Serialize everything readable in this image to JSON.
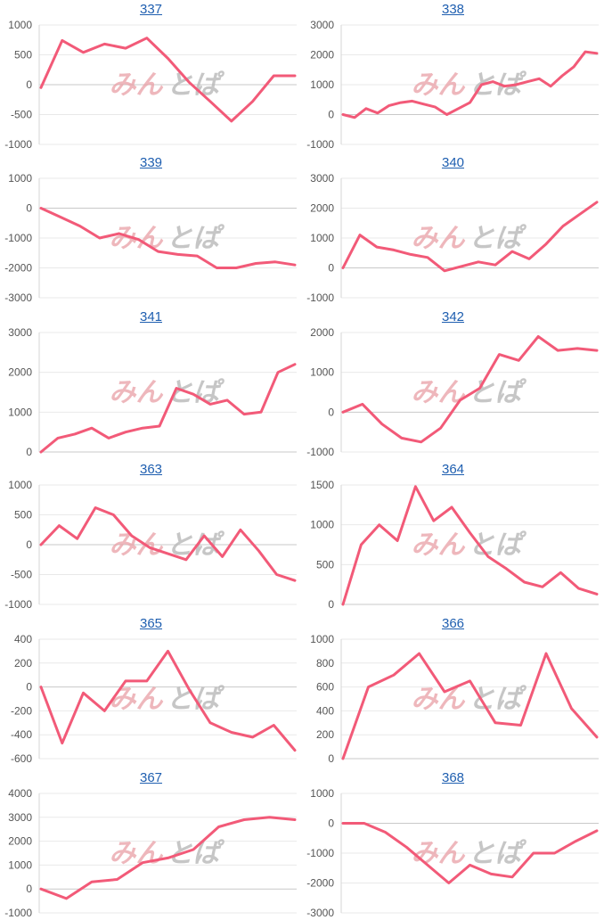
{
  "watermark": {
    "part1": "みん",
    "part2": "とぱ",
    "color1": "#e9a0a6",
    "color2": "#b9b9b9"
  },
  "colors": {
    "line": "#f25a78",
    "title": "#1f5fb0"
  },
  "chart_data": [
    {
      "type": "line",
      "title": "337",
      "ylim": [
        -1000,
        1000
      ],
      "yticks": [
        1000,
        500,
        0,
        -500,
        -1000
      ],
      "values": [
        -50,
        740,
        540,
        680,
        610,
        780,
        440,
        40,
        -280,
        -610,
        -280,
        150,
        150
      ]
    },
    {
      "type": "line",
      "title": "338",
      "ylim": [
        -1000,
        3000
      ],
      "yticks": [
        3000,
        2000,
        1000,
        0,
        -1000
      ],
      "values": [
        0,
        -100,
        200,
        50,
        300,
        400,
        450,
        350,
        250,
        0,
        200,
        400,
        1000,
        1100,
        950,
        1000,
        1100,
        1200,
        950,
        1300,
        1600,
        2100,
        2050
      ]
    },
    {
      "type": "line",
      "title": "339",
      "ylim": [
        -3000,
        1000
      ],
      "yticks": [
        1000,
        0,
        -1000,
        -2000,
        -3000
      ],
      "values": [
        0,
        -300,
        -600,
        -1000,
        -850,
        -1050,
        -1450,
        -1550,
        -1600,
        -2000,
        -2000,
        -1850,
        -1800,
        -1900
      ]
    },
    {
      "type": "line",
      "title": "340",
      "ylim": [
        -1000,
        3000
      ],
      "yticks": [
        3000,
        2000,
        1000,
        0,
        -1000
      ],
      "values": [
        0,
        1100,
        700,
        600,
        450,
        350,
        -100,
        50,
        200,
        100,
        550,
        300,
        800,
        1400,
        1800,
        2200
      ]
    },
    {
      "type": "line",
      "title": "341",
      "ylim": [
        0,
        3000
      ],
      "yticks": [
        3000,
        2000,
        1000,
        0
      ],
      "values": [
        0,
        350,
        450,
        600,
        350,
        500,
        600,
        650,
        1600,
        1450,
        1200,
        1300,
        950,
        1000,
        2000,
        2200
      ]
    },
    {
      "type": "line",
      "title": "342",
      "ylim": [
        -1000,
        2000
      ],
      "yticks": [
        2000,
        1000,
        0,
        -1000
      ],
      "values": [
        0,
        200,
        -300,
        -650,
        -750,
        -400,
        300,
        600,
        1450,
        1300,
        1900,
        1550,
        1600,
        1550
      ]
    },
    {
      "type": "line",
      "title": "363",
      "ylim": [
        -1000,
        1000
      ],
      "yticks": [
        1000,
        500,
        0,
        -500,
        -1000
      ],
      "values": [
        0,
        320,
        100,
        620,
        500,
        150,
        -50,
        -150,
        -250,
        150,
        -200,
        250,
        -100,
        -500,
        -600
      ]
    },
    {
      "type": "line",
      "title": "364",
      "ylim": [
        0,
        1500
      ],
      "yticks": [
        1500,
        1000,
        500,
        0
      ],
      "values": [
        0,
        750,
        1000,
        800,
        1480,
        1050,
        1220,
        900,
        600,
        450,
        280,
        220,
        400,
        200,
        130
      ]
    },
    {
      "type": "line",
      "title": "365",
      "ylim": [
        -600,
        400
      ],
      "yticks": [
        400,
        200,
        0,
        -200,
        -400,
        -600
      ],
      "values": [
        0,
        -470,
        -50,
        -200,
        50,
        50,
        300,
        -20,
        -300,
        -380,
        -420,
        -320,
        -530
      ]
    },
    {
      "type": "line",
      "title": "366",
      "ylim": [
        0,
        1000
      ],
      "yticks": [
        1000,
        800,
        600,
        400,
        200,
        0
      ],
      "values": [
        0,
        600,
        700,
        880,
        560,
        650,
        300,
        280,
        880,
        420,
        180
      ]
    },
    {
      "type": "line",
      "title": "367",
      "ylim": [
        -1000,
        4000
      ],
      "yticks": [
        4000,
        3000,
        2000,
        1000,
        0,
        -1000
      ],
      "values": [
        0,
        -400,
        300,
        400,
        1100,
        1300,
        1650,
        2600,
        2900,
        3000,
        2900
      ]
    },
    {
      "type": "line",
      "title": "368",
      "ylim": [
        -3000,
        1000
      ],
      "yticks": [
        1000,
        0,
        -1000,
        -2000,
        -3000
      ],
      "values": [
        0,
        0,
        -300,
        -800,
        -1400,
        -2000,
        -1400,
        -1700,
        -1800,
        -1000,
        -1000,
        -600,
        -250
      ]
    }
  ]
}
